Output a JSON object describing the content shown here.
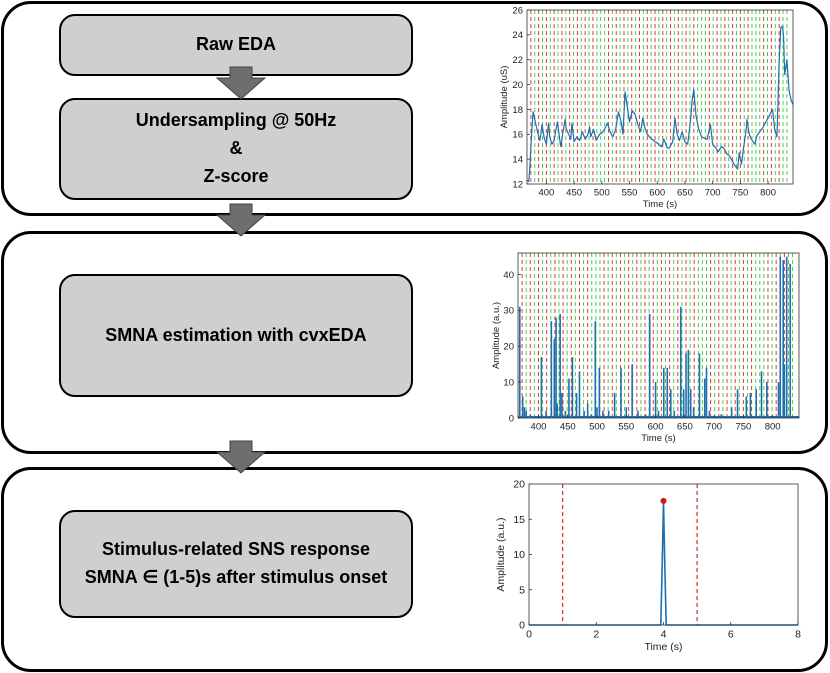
{
  "steps": {
    "raw_eda": "Raw EDA",
    "undersampling_line1": "Undersampling @ 50Hz",
    "undersampling_line2": "&",
    "undersampling_line3": "Z-score",
    "smna_estimation": "SMNA estimation with cvxEDA",
    "stimulus_line1": "Stimulus-related SNS response",
    "stimulus_line2": "SMNA ∈ (1-5)s after stimulus onset"
  },
  "colors": {
    "box_fill": "#cfcfcf",
    "arrow_fill": "#6e6e6e",
    "series": "#1f6fad",
    "red_marker": "#e0383a",
    "green_marker": "#48d048",
    "peak_dot": "#dd1111"
  },
  "chart_data": [
    {
      "type": "line",
      "xlabel": "Time (s)",
      "ylabel": "Amplitude (uS)",
      "xlim": [
        365,
        845
      ],
      "ylim": [
        12,
        26
      ],
      "xticks": [
        400,
        450,
        500,
        550,
        600,
        650,
        700,
        750,
        800
      ],
      "yticks": [
        12,
        14,
        16,
        18,
        20,
        22,
        24,
        26
      ],
      "vlines_red": [
        372,
        386,
        400,
        414,
        428,
        442,
        456,
        470,
        484,
        512,
        526,
        540,
        554,
        568,
        582,
        596,
        610,
        624,
        638,
        652,
        666,
        694,
        708,
        722,
        736,
        750,
        764,
        792,
        806,
        820
      ],
      "vlines_green": [
        379,
        393,
        407,
        421,
        435,
        449,
        463,
        477,
        491,
        498,
        505,
        519,
        533,
        547,
        561,
        575,
        589,
        603,
        617,
        631,
        645,
        659,
        673,
        680,
        687,
        701,
        715,
        729,
        743,
        757,
        771,
        778,
        785,
        799,
        813,
        827,
        834
      ],
      "series": [
        {
          "x": [
            365,
            368,
            370,
            372,
            374,
            376,
            380,
            384,
            388,
            390,
            392,
            396,
            400,
            404,
            406,
            410,
            414,
            416,
            420,
            424,
            426,
            430,
            434,
            436,
            440,
            444,
            446,
            450,
            455,
            460,
            465,
            470,
            475,
            478,
            480,
            485,
            490,
            496,
            500,
            505,
            510,
            515,
            520,
            525,
            530,
            535,
            538,
            542,
            546,
            550,
            555,
            560,
            565,
            570,
            574,
            578,
            582,
            590,
            600,
            608,
            612,
            618,
            622,
            628,
            632,
            636,
            640,
            645,
            650,
            655,
            660,
            663,
            666,
            670,
            675,
            680,
            690,
            696,
            700,
            706,
            710,
            716,
            720,
            726,
            730,
            736,
            740,
            745,
            748,
            752,
            756,
            760,
            762,
            766,
            770,
            776,
            780,
            790,
            800,
            808,
            812,
            816,
            818,
            820,
            823,
            826,
            828,
            830,
            834,
            838,
            842,
            845
          ],
          "y": [
            12.3,
            12.2,
            13.2,
            15.0,
            16.5,
            17.8,
            17.0,
            16.2,
            15.5,
            16.0,
            16.8,
            15.7,
            15.2,
            16.9,
            15.8,
            15.2,
            15.5,
            16.1,
            17.0,
            15.6,
            15.0,
            16.2,
            17.2,
            16.4,
            16.0,
            15.6,
            16.9,
            15.4,
            15.8,
            15.5,
            16.2,
            15.6,
            16.0,
            16.6,
            15.8,
            16.4,
            15.5,
            16.0,
            16.1,
            16.4,
            16.9,
            16.2,
            15.8,
            16.4,
            17.8,
            17.0,
            16.0,
            19.4,
            18.2,
            17.0,
            17.9,
            17.6,
            16.8,
            16.2,
            17.3,
            16.5,
            16.0,
            15.6,
            15.3,
            15.0,
            15.6,
            14.9,
            14.9,
            15.4,
            17.3,
            16.0,
            15.5,
            16.2,
            15.4,
            15.2,
            17.1,
            18.7,
            19.6,
            17.5,
            16.4,
            15.8,
            15.6,
            16.8,
            15.2,
            14.9,
            14.6,
            15.0,
            14.9,
            14.4,
            14.3,
            13.8,
            13.5,
            13.2,
            14.5,
            13.6,
            15.0,
            16.2,
            17.2,
            16.0,
            15.6,
            15.2,
            15.9,
            16.5,
            17.3,
            18.0,
            16.4,
            15.8,
            18.5,
            21.8,
            24.6,
            24.7,
            23.8,
            20.8,
            22.0,
            19.5,
            18.7,
            18.4
          ]
        }
      ]
    },
    {
      "type": "bar",
      "xlabel": "Time (s)",
      "ylabel": "Amplitude (a.u.)",
      "xlim": [
        365,
        845
      ],
      "ylim": [
        0,
        46
      ],
      "xticks": [
        400,
        450,
        500,
        550,
        600,
        650,
        700,
        750,
        800
      ],
      "yticks": [
        0,
        10,
        20,
        30,
        40
      ],
      "vlines_red": [
        372,
        386,
        400,
        414,
        428,
        442,
        456,
        470,
        484,
        512,
        526,
        540,
        554,
        568,
        582,
        596,
        610,
        624,
        638,
        652,
        666,
        694,
        708,
        722,
        736,
        750,
        764,
        792,
        806,
        820
      ],
      "vlines_green": [
        379,
        393,
        407,
        421,
        435,
        449,
        463,
        477,
        491,
        498,
        505,
        519,
        533,
        547,
        561,
        575,
        589,
        603,
        617,
        631,
        645,
        659,
        673,
        680,
        687,
        701,
        715,
        729,
        743,
        757,
        771,
        778,
        785,
        799,
        813,
        827,
        834
      ],
      "x": [
        368,
        373,
        376,
        379,
        386,
        405,
        413,
        422,
        427,
        430,
        432,
        437,
        440,
        446,
        452,
        458,
        465,
        470,
        478,
        484,
        490,
        497,
        500,
        504,
        510,
        520,
        530,
        541,
        550,
        560,
        570,
        583,
        590,
        600,
        605,
        614,
        620,
        626,
        632,
        643,
        648,
        652,
        656,
        660,
        665,
        675,
        684,
        687,
        692,
        712,
        730,
        740,
        755,
        762,
        772,
        781,
        790,
        810,
        813,
        818,
        820,
        824,
        830
      ],
      "values": [
        31,
        6,
        3,
        2,
        1,
        17,
        2,
        27,
        22,
        28,
        4,
        29,
        7,
        2,
        11,
        17,
        7,
        13,
        2,
        4,
        1,
        27,
        3,
        14,
        2,
        2,
        7,
        14,
        3,
        15,
        2,
        1,
        29,
        10,
        2,
        14,
        14,
        8,
        2,
        31,
        8,
        18,
        19,
        8,
        3,
        18,
        11,
        14,
        2,
        1,
        3,
        8,
        6,
        7,
        8,
        13,
        10,
        10,
        45,
        44,
        15,
        45,
        43
      ]
    },
    {
      "type": "line",
      "xlabel": "Time (s)",
      "ylabel": "Amplitude (a.u.)",
      "xlim": [
        0,
        8
      ],
      "ylim": [
        0,
        20
      ],
      "xticks": [
        0,
        2,
        4,
        6,
        8
      ],
      "yticks": [
        0,
        5,
        10,
        15,
        20
      ],
      "vlines_red": [
        1,
        5
      ],
      "peak": {
        "x": 4.0,
        "y": 17.6
      },
      "series": [
        {
          "x": [
            0,
            3.92,
            3.96,
            4.0,
            4.04,
            4.08,
            8
          ],
          "y": [
            0,
            0,
            8.5,
            17.6,
            8.5,
            0,
            0
          ]
        }
      ]
    }
  ]
}
